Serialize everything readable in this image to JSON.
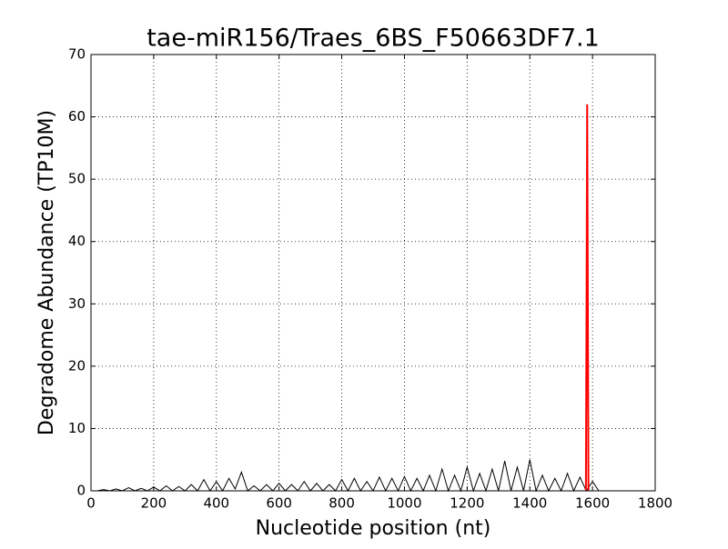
{
  "chart_data": {
    "type": "line",
    "title": "tae-miR156/Traes_6BS_F50663DF7.1",
    "x_label": "Nucleotide position (nt)",
    "y_label": "Degradome Abundance (TP10M)",
    "xlim": [
      0,
      1800
    ],
    "xticks": [
      0,
      200,
      400,
      600,
      800,
      1000,
      1200,
      1400,
      1600,
      1800
    ],
    "ylim": [
      0,
      70
    ],
    "yticks": [
      0,
      10,
      20,
      30,
      40,
      50,
      60,
      70
    ],
    "grid": true,
    "series": [
      {
        "color": "#000000",
        "x": [
          20,
          40,
          60,
          80,
          100,
          120,
          140,
          160,
          180,
          200,
          220,
          240,
          260,
          280,
          300,
          320,
          340,
          360,
          380,
          400,
          420,
          440,
          460,
          480,
          500,
          520,
          540,
          560,
          580,
          600,
          620,
          640,
          660,
          680,
          700,
          720,
          740,
          760,
          780,
          800,
          820,
          840,
          860,
          880,
          900,
          920,
          940,
          960,
          980,
          1000,
          1020,
          1040,
          1060,
          1080,
          1100,
          1120,
          1140,
          1160,
          1180,
          1200,
          1220,
          1240,
          1260,
          1280,
          1300,
          1320,
          1340,
          1360,
          1380,
          1400,
          1420,
          1440,
          1460,
          1480,
          1500,
          1520,
          1540,
          1560,
          1580,
          1600,
          1620
        ],
        "values": [
          0,
          0.2,
          0,
          0.3,
          0,
          0.5,
          0,
          0.4,
          0,
          0.6,
          0,
          0.8,
          0,
          0.7,
          0,
          1.0,
          0,
          1.8,
          0,
          1.5,
          0,
          2.0,
          0.3,
          3.0,
          0,
          0.8,
          0,
          1.0,
          0,
          1.2,
          0,
          1.0,
          0,
          1.5,
          0,
          1.2,
          0,
          1.0,
          0,
          1.8,
          0,
          2.0,
          0,
          1.5,
          0,
          2.2,
          0,
          2.0,
          0,
          2.3,
          0,
          2.0,
          0,
          2.5,
          0,
          3.5,
          0,
          2.5,
          0,
          3.8,
          0,
          2.8,
          0,
          3.5,
          0,
          4.8,
          0,
          3.8,
          0,
          5.0,
          0,
          2.5,
          0,
          2.0,
          0,
          2.8,
          0,
          2.2,
          0,
          1.5,
          0
        ]
      },
      {
        "color": "#ff0000",
        "x": [
          1579,
          1583,
          1587
        ],
        "values": [
          0,
          62,
          0
        ]
      }
    ]
  }
}
